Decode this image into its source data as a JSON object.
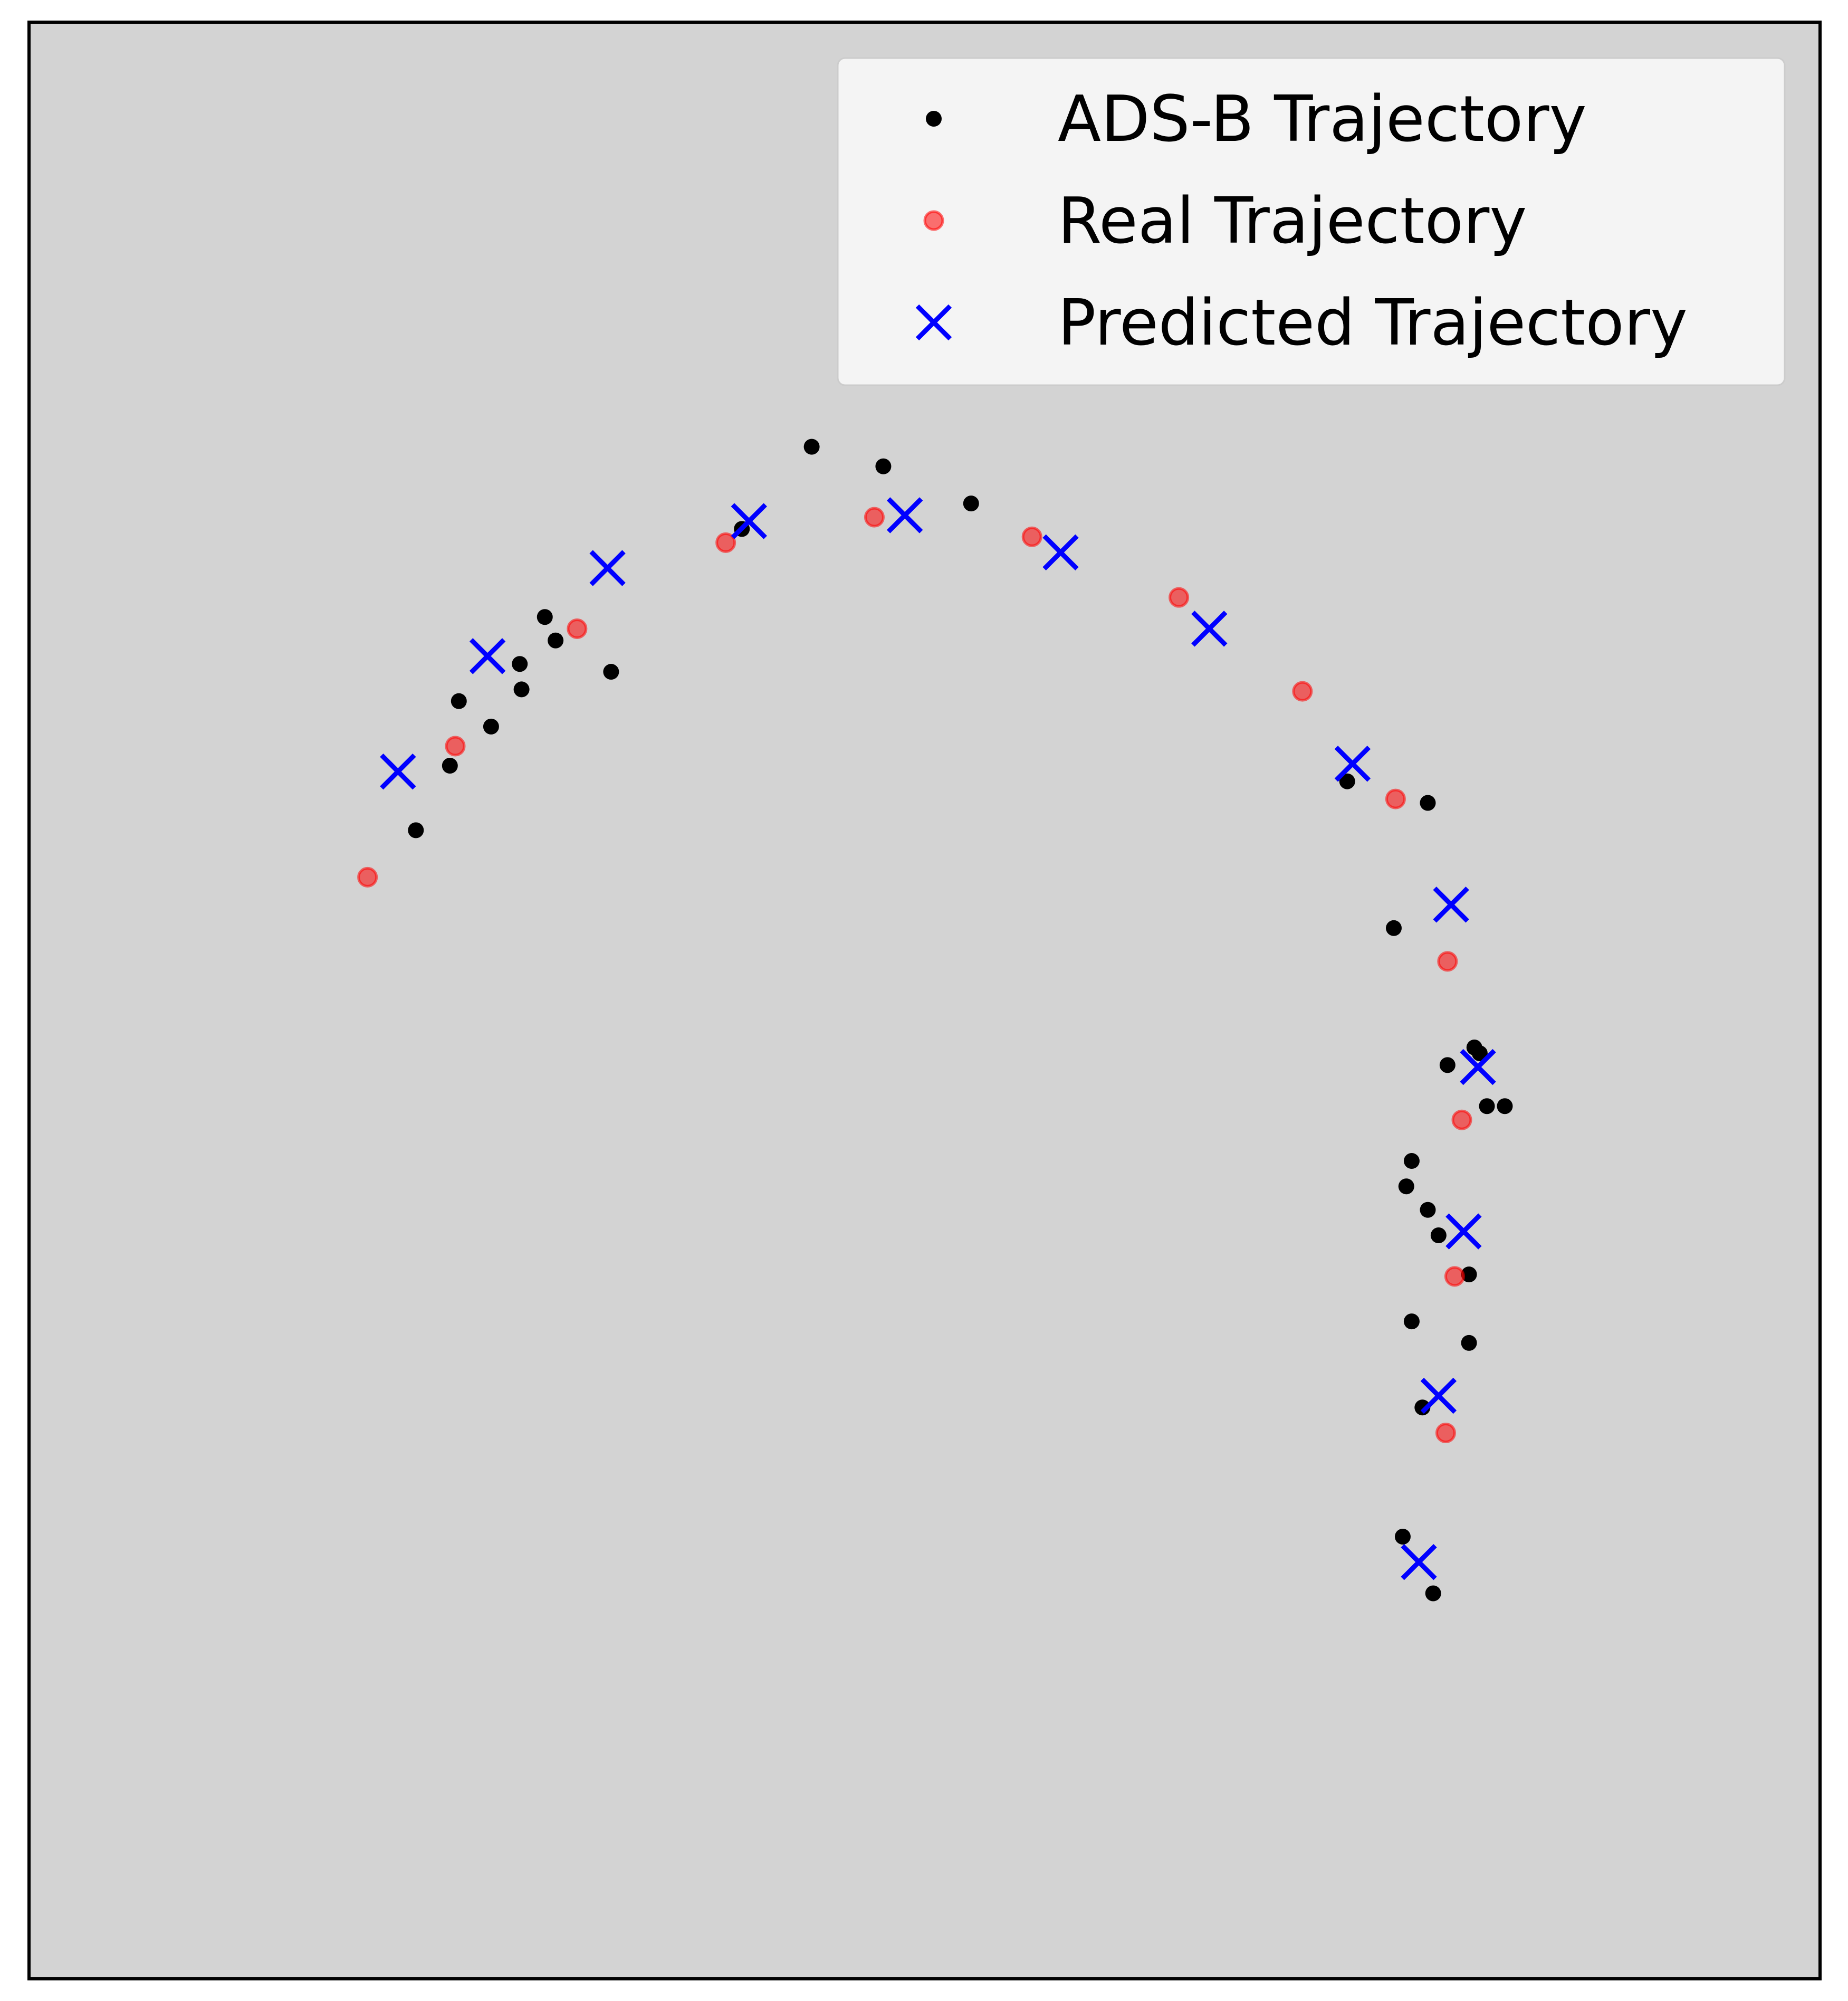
{
  "chart_data": {
    "type": "scatter",
    "title": "",
    "xlabel": "",
    "ylabel": "",
    "axis_ticks_visible": false,
    "grid": false,
    "background_color": "#d3d3d3",
    "legend_placement": "top-right",
    "xlim": [
      0,
      1
    ],
    "ylim": [
      0,
      1
    ],
    "series": [
      {
        "name": "ADS-B Trajectory",
        "marker": "dot",
        "color": "#000000",
        "points": [
          [
            0.437,
            0.783
          ],
          [
            0.477,
            0.773
          ],
          [
            0.526,
            0.754
          ],
          [
            0.398,
            0.741
          ],
          [
            0.288,
            0.696
          ],
          [
            0.294,
            0.684
          ],
          [
            0.325,
            0.668
          ],
          [
            0.274,
            0.672
          ],
          [
            0.24,
            0.653
          ],
          [
            0.275,
            0.659
          ],
          [
            0.258,
            0.64
          ],
          [
            0.235,
            0.62
          ],
          [
            0.216,
            0.587
          ],
          [
            0.736,
            0.612
          ],
          [
            0.781,
            0.601
          ],
          [
            0.762,
            0.537
          ],
          [
            0.807,
            0.476
          ],
          [
            0.81,
            0.473
          ],
          [
            0.792,
            0.467
          ],
          [
            0.824,
            0.446
          ],
          [
            0.814,
            0.446
          ],
          [
            0.772,
            0.418
          ],
          [
            0.769,
            0.405
          ],
          [
            0.781,
            0.393
          ],
          [
            0.787,
            0.38
          ],
          [
            0.804,
            0.36
          ],
          [
            0.772,
            0.336
          ],
          [
            0.804,
            0.325
          ],
          [
            0.778,
            0.292
          ],
          [
            0.767,
            0.226
          ],
          [
            0.784,
            0.197
          ]
        ]
      },
      {
        "name": "Real Trajectory",
        "marker": "circle",
        "color": "#ff0000",
        "points": [
          [
            0.189,
            0.563
          ],
          [
            0.238,
            0.63
          ],
          [
            0.306,
            0.69
          ],
          [
            0.389,
            0.734
          ],
          [
            0.472,
            0.747
          ],
          [
            0.56,
            0.737
          ],
          [
            0.642,
            0.706
          ],
          [
            0.711,
            0.658
          ],
          [
            0.763,
            0.603
          ],
          [
            0.792,
            0.52
          ],
          [
            0.8,
            0.439
          ],
          [
            0.796,
            0.359
          ],
          [
            0.791,
            0.279
          ]
        ]
      },
      {
        "name": "Predicted Trajectory",
        "marker": "x",
        "color": "#0000ff",
        "points": [
          [
            0.206,
            0.617
          ],
          [
            0.256,
            0.676
          ],
          [
            0.323,
            0.721
          ],
          [
            0.402,
            0.745
          ],
          [
            0.489,
            0.748
          ],
          [
            0.576,
            0.729
          ],
          [
            0.659,
            0.69
          ],
          [
            0.739,
            0.621
          ],
          [
            0.794,
            0.549
          ],
          [
            0.809,
            0.466
          ],
          [
            0.801,
            0.382
          ],
          [
            0.787,
            0.298
          ],
          [
            0.776,
            0.213
          ]
        ]
      }
    ]
  }
}
